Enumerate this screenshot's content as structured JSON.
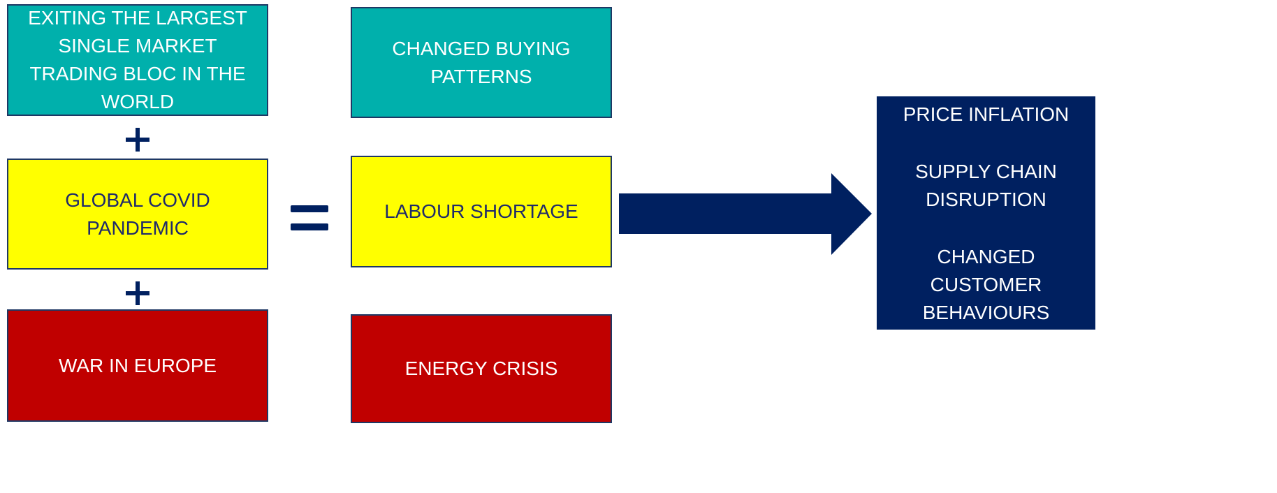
{
  "causes": [
    "EXITING THE LARGEST SINGLE MARKET TRADING BLOC IN THE WORLD",
    "GLOBAL COVID PANDEMIC",
    "WAR IN EUROPE"
  ],
  "effects": [
    "CHANGED BUYING PATTERNS",
    "LABOUR SHORTAGE",
    "ENERGY CRISIS"
  ],
  "outcomes": [
    "PRICE INFLATION",
    "SUPPLY CHAIN DISRUPTION",
    "CHANGED CUSTOMER BEHAVIOURS"
  ]
}
